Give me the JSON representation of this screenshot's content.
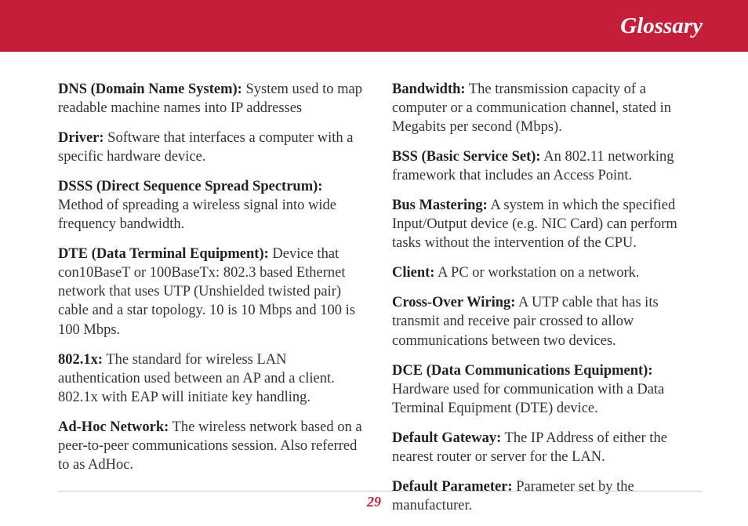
{
  "header": {
    "title": "Glossary"
  },
  "colors": {
    "header_bg": "#c41e3a",
    "header_text": "#ffffff",
    "body_text": "#333333",
    "rule": "#cccccc",
    "page_num": "#c41e3a"
  },
  "left_column": [
    {
      "term": "DNS (Domain Name System):",
      "def": "  System used to map readable machine names into IP addresses"
    },
    {
      "term": "Driver:",
      "def": "  Software that interfaces a comput­er with a specific hardware device."
    },
    {
      "term": "DSSS (Direct Sequence Spread Spec­trum):",
      "def": " Method of spreading a wireless signal into wide frequency bandwidth."
    },
    {
      "term": "DTE (Data Terminal Equipment):",
      "def": "  Device that con10BaseT or 100BaseTx:  802.3 based Ethernet network that uses UTP (Unshielded twisted pair) cable and a star topology.  10 is 10 Mbps and 100 is 100 Mbps."
    },
    {
      "term": "802.1x:",
      "def": " The standard for wireless LAN authentication used between an AP and a client.  802.1x with EAP will initiate key handling."
    },
    {
      "term": "Ad-Hoc Network:",
      "def": " The wireless network based on a peer-to-peer communications session.  Also referred to as AdHoc."
    }
  ],
  "right_column": [
    {
      "term": "Bandwidth:",
      "def": "  The transmission capacity of a computer or a communication channel, stated in Megabits per second (Mbps)."
    },
    {
      "term": "BSS (Basic Service Set):",
      "def": "  An 802.11 net­working framework that includes an Access Point."
    },
    {
      "term": "Bus Mastering:",
      "def": "  A system in which the specified Input/Output device (e.g. NIC Card) can perform tasks without the inter­vention of the CPU."
    },
    {
      "term": "Client:",
      "def": " A PC or workstation on a network."
    },
    {
      "term": "Cross-Over Wiring:",
      "def": " A UTP cable that has its transmit and receive pair crossed to al­low communications between two devices."
    },
    {
      "term": "DCE (Data Communications Equipment):",
      "def": " Hardware used for communication with a Data Terminal Equipment (DTE) device."
    },
    {
      "term": "Default Gateway:",
      "def": " The IP Address of either the nearest router or server for the LAN."
    },
    {
      "term": "Default Parameter:",
      "def": " Parameter set by the manufacturer."
    }
  ],
  "page_number": "29"
}
